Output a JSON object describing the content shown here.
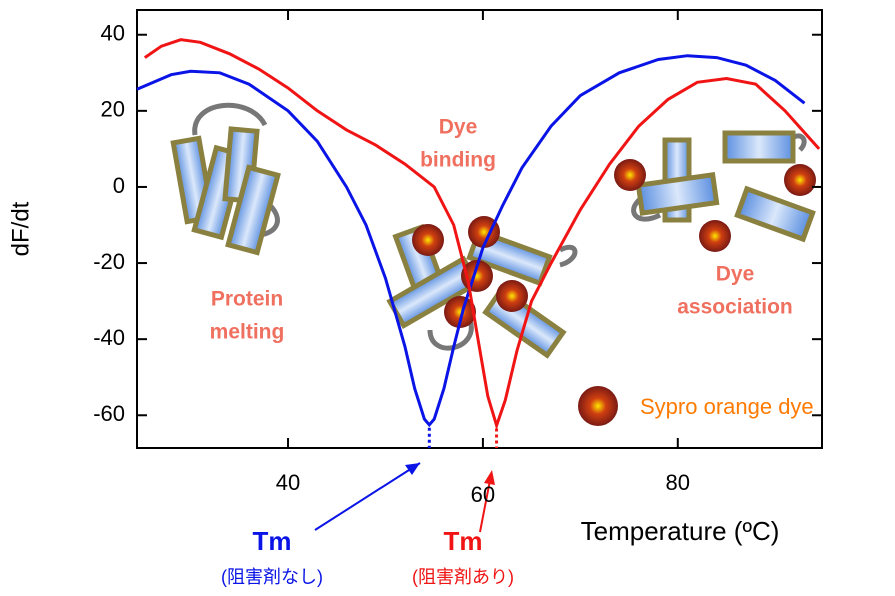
{
  "chart_data": {
    "type": "line",
    "x_label": "Temperature (ºC)",
    "y_label": "dF/dt",
    "xlim": [
      24.5,
      94.8
    ],
    "xticks": [
      40,
      60,
      80
    ],
    "ylim": [
      -68.6,
      46.5
    ],
    "yticks": [
      -60,
      -40,
      -20,
      0,
      20,
      40
    ],
    "series": [
      {
        "name": "Tm",
        "note": "(阻害剤なし)",
        "color": "#0a14e6",
        "x": [
          24.5,
          28,
          30,
          33,
          36,
          40,
          43,
          46,
          48,
          50,
          52,
          53,
          54,
          54.5,
          55,
          56,
          57,
          58,
          60,
          62,
          64,
          67,
          70,
          74,
          78,
          81,
          84,
          87,
          90,
          93
        ],
        "values": [
          25.7,
          29.5,
          30.4,
          30,
          27,
          20,
          12,
          0,
          -10,
          -24,
          -42,
          -53,
          -61,
          -62.5,
          -61,
          -53,
          -42,
          -32,
          -16,
          -5,
          5,
          16,
          24,
          30,
          33.5,
          34.5,
          34,
          32,
          28,
          22
        ]
      },
      {
        "name": "Tm",
        "note": "(阻害剤あり)",
        "color": "#f01414",
        "x": [
          25.3,
          27,
          29,
          31,
          34,
          37,
          40,
          43,
          46,
          49,
          52,
          55,
          57,
          58.5,
          59.5,
          60.5,
          61.4,
          62.3,
          63.5,
          65,
          67,
          70,
          73,
          76,
          79,
          82,
          85,
          88,
          91,
          94.5
        ],
        "values": [
          34,
          37,
          38.7,
          38,
          35,
          31,
          26,
          20,
          15,
          11,
          6,
          0,
          -10,
          -25,
          -40,
          -55,
          -62.7,
          -56,
          -43,
          -30,
          -20,
          -6,
          6,
          16,
          23,
          27.5,
          28.5,
          27,
          20,
          10
        ]
      }
    ],
    "annotations": [
      {
        "lines": [
          "Dye",
          "binding"
        ],
        "color": "#f07060"
      },
      {
        "lines": [
          "Protein",
          "melting"
        ],
        "color": "#f07060"
      },
      {
        "lines": [
          "Dye",
          "association"
        ],
        "color": "#f07060"
      },
      {
        "lines": [
          "Sypro orange dye"
        ],
        "color": "#ff7a00"
      }
    ]
  }
}
